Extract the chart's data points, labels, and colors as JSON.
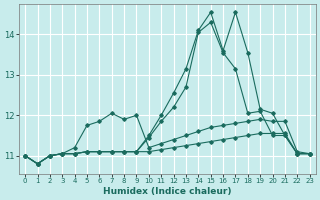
{
  "xlabel": "Humidex (Indice chaleur)",
  "bg_color": "#c8ecec",
  "grid_color": "#ffffff",
  "line_color": "#1a6b5e",
  "xlim": [
    -0.5,
    23.5
  ],
  "ylim": [
    10.55,
    14.75
  ],
  "yticks": [
    11,
    12,
    13,
    14
  ],
  "xticks": [
    0,
    1,
    2,
    3,
    4,
    5,
    6,
    7,
    8,
    9,
    10,
    11,
    12,
    13,
    14,
    15,
    16,
    17,
    18,
    19,
    20,
    21,
    22,
    23
  ],
  "x": [
    0,
    1,
    2,
    3,
    4,
    5,
    6,
    7,
    8,
    9,
    10,
    11,
    12,
    13,
    14,
    15,
    16,
    17,
    18,
    19,
    20,
    21,
    22,
    23
  ],
  "series_peak": [
    11.0,
    10.8,
    11.0,
    11.05,
    11.05,
    11.1,
    11.1,
    11.1,
    11.1,
    11.1,
    11.5,
    12.0,
    12.55,
    13.15,
    14.1,
    14.55,
    13.6,
    14.55,
    13.55,
    12.15,
    12.05,
    11.5,
    11.05,
    11.05
  ],
  "series_mid": [
    11.0,
    10.8,
    11.0,
    11.05,
    11.05,
    11.1,
    11.1,
    11.1,
    11.1,
    11.1,
    11.45,
    11.85,
    12.2,
    12.7,
    14.05,
    14.3,
    13.55,
    13.15,
    12.05,
    12.1,
    11.5,
    11.5,
    11.05,
    11.05
  ],
  "series_flat1": [
    11.0,
    10.8,
    11.0,
    11.05,
    11.2,
    11.75,
    11.85,
    12.05,
    11.9,
    12.0,
    11.2,
    11.3,
    11.4,
    11.5,
    11.6,
    11.7,
    11.75,
    11.8,
    11.85,
    11.9,
    11.85,
    11.85,
    11.1,
    11.05
  ],
  "series_flat2": [
    11.0,
    10.8,
    11.0,
    11.05,
    11.05,
    11.1,
    11.1,
    11.1,
    11.1,
    11.1,
    11.1,
    11.15,
    11.2,
    11.25,
    11.3,
    11.35,
    11.4,
    11.45,
    11.5,
    11.55,
    11.55,
    11.55,
    11.05,
    11.05
  ]
}
